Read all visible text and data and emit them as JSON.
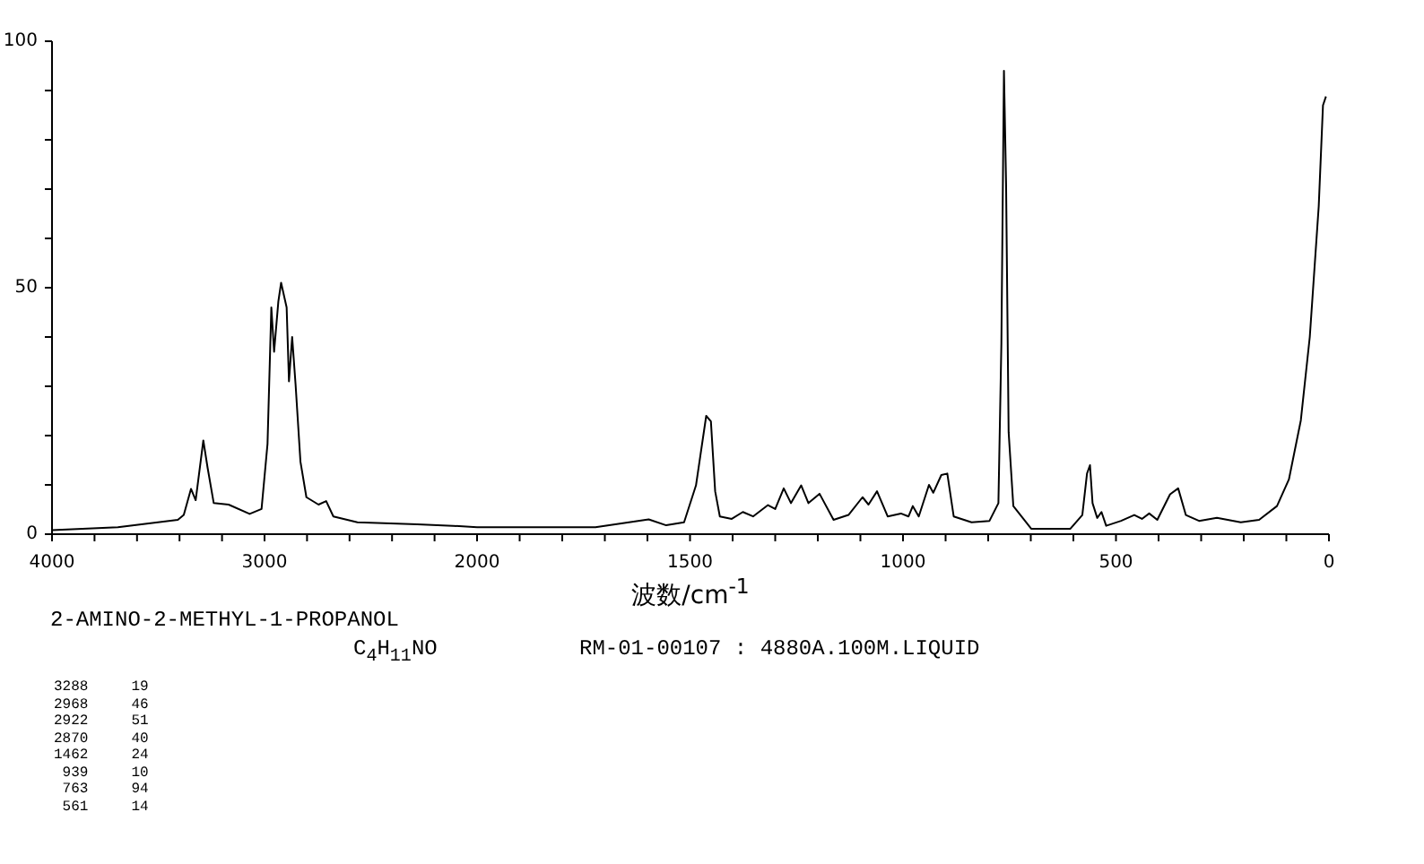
{
  "chart_data": [
    {
      "type": "line",
      "x": [
        4000,
        3690,
        3408,
        3380,
        3346,
        3324,
        3288,
        3268,
        3239,
        3169,
        3070,
        3014,
        2986,
        2968,
        2955,
        2935,
        2922,
        2896,
        2885,
        2870,
        2854,
        2831,
        2803,
        2746,
        2710,
        2676,
        2563,
        2282,
        2113,
        2000
      ],
      "series": [
        {
          "color": "#000000",
          "values": [
            0.8,
            1.4,
            2.9,
            3.9,
            9.2,
            6.9,
            19,
            13.5,
            6.3,
            6.0,
            4.1,
            5.1,
            18.3,
            46,
            37,
            47.2,
            51,
            46,
            31,
            40,
            30.4,
            14.7,
            7.5,
            6.0,
            6.7,
            3.6,
            2.4,
            2.0,
            1.7,
            1.4
          ]
        }
      ],
      "xlim": [
        4000,
        2000
      ],
      "xticks": [
        4000,
        {
          "value": 3800,
          "label": null
        },
        {
          "value": 3600,
          "label": null
        },
        {
          "value": 3400,
          "label": null
        },
        {
          "value": 3200,
          "label": null
        },
        3000,
        {
          "value": 2800,
          "label": null
        },
        {
          "value": 2600,
          "label": null
        },
        {
          "value": 2400,
          "label": null
        },
        {
          "value": 2200,
          "label": null
        },
        2000
      ],
      "ylim": [
        0,
        100
      ],
      "yticks": [
        0,
        {
          "value": 10,
          "label": null
        },
        {
          "value": 20,
          "label": null
        },
        {
          "value": 30,
          "label": null
        },
        {
          "value": 40,
          "label": null
        },
        50,
        {
          "value": 60,
          "label": null
        },
        {
          "value": 70,
          "label": null
        },
        {
          "value": 80,
          "label": null
        },
        {
          "value": 90,
          "label": null
        },
        100
      ],
      "grid": false,
      "legend": false,
      "marker": "none",
      "line_style": "solid"
    },
    {
      "type": "line",
      "xlabel": "波数/cm$^{-1}$",
      "x": [
        2000,
        1722,
        1597,
        1556,
        1514,
        1486,
        1462,
        1451,
        1441,
        1430,
        1402,
        1376,
        1352,
        1317,
        1300,
        1280,
        1263,
        1239,
        1222,
        1196,
        1163,
        1128,
        1095,
        1081,
        1061,
        1036,
        1005,
        987,
        977,
        963,
        939,
        929,
        910,
        896,
        881,
        839,
        797,
        776,
        769,
        763,
        758,
        752,
        741,
        699,
        607,
        579,
        568,
        561,
        555,
        544,
        534,
        523,
        488,
        457,
        439,
        422,
        403,
        373,
        354,
        336,
        305,
        263,
        207,
        164,
        122,
        94,
        66,
        45,
        24,
        14,
        7
      ],
      "series": [
        {
          "color": "#000000",
          "values": [
            1.4,
            1.4,
            3.0,
            1.8,
            2.4,
            9.9,
            24,
            22.9,
            8.7,
            3.6,
            3.1,
            4.5,
            3.6,
            5.9,
            5.1,
            9.3,
            6.3,
            9.9,
            6.3,
            8.2,
            2.9,
            3.9,
            7.5,
            6.0,
            8.7,
            3.6,
            4.2,
            3.6,
            5.7,
            3.6,
            10,
            8.4,
            12.0,
            12.3,
            3.6,
            2.4,
            2.7,
            6.3,
            38.8,
            94,
            71,
            20.7,
            5.7,
            1.1,
            1.1,
            3.9,
            12.3,
            14,
            6.3,
            3.3,
            4.5,
            1.7,
            2.7,
            3.9,
            3.1,
            4.2,
            2.9,
            8.1,
            9.3,
            3.9,
            2.7,
            3.3,
            2.4,
            2.9,
            5.7,
            11.1,
            23.1,
            40,
            66.5,
            87,
            88.8
          ]
        }
      ],
      "xlim": [
        2000,
        0
      ],
      "xticks": [
        {
          "value": 2000,
          "label": null
        },
        {
          "value": 1900,
          "label": null
        },
        {
          "value": 1800,
          "label": null
        },
        {
          "value": 1700,
          "label": null
        },
        {
          "value": 1600,
          "label": null
        },
        1500,
        {
          "value": 1400,
          "label": null
        },
        {
          "value": 1300,
          "label": null
        },
        {
          "value": 1200,
          "label": null
        },
        {
          "value": 1100,
          "label": null
        },
        1000,
        {
          "value": 900,
          "label": null
        },
        {
          "value": 800,
          "label": null
        },
        {
          "value": 700,
          "label": null
        },
        {
          "value": 600,
          "label": null
        },
        500,
        {
          "value": 400,
          "label": null
        },
        {
          "value": 300,
          "label": null
        },
        {
          "value": 200,
          "label": null
        },
        {
          "value": 100,
          "label": null
        },
        0
      ],
      "ylim": [
        0,
        100
      ],
      "tick_labels": "x",
      "grid": false,
      "legend": false,
      "marker": "none",
      "line_style": "solid",
      "annotations": [
        "2-AMINO-2-METHYL-1-PROPANOL",
        "C$_{4}$H$_{11}$NO",
        "RM-01-00107 : 4880A.100M.LIQUID",
        "3288     19",
        "2968     46",
        "2922     51",
        "2870     40",
        "1462     24",
        "939     10",
        "763     94",
        "561     14"
      ]
    }
  ]
}
